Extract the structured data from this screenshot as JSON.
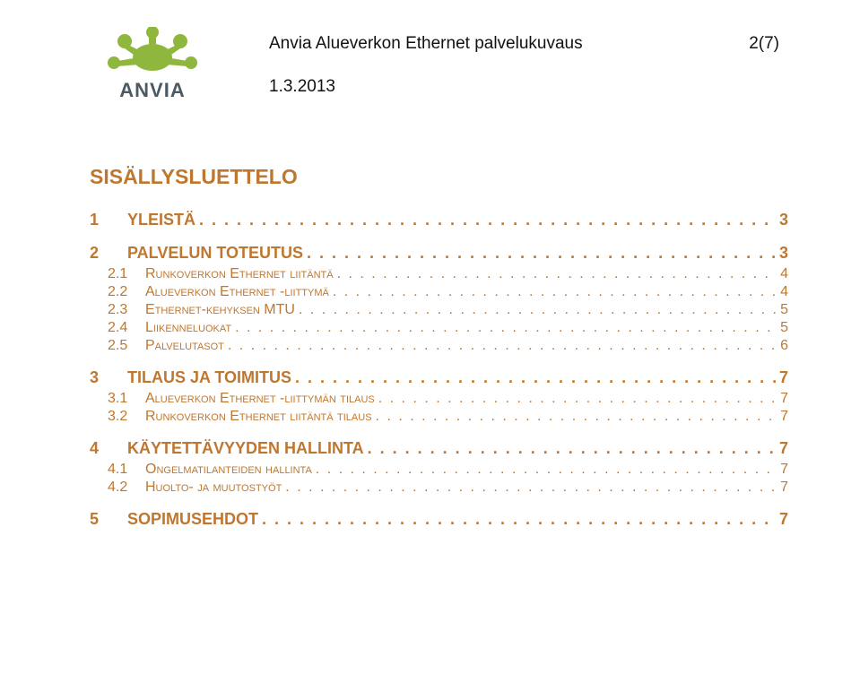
{
  "header": {
    "logo_text": "ANVIA",
    "logo_color": "#8fb73e",
    "logo_text_color": "#4a5a63",
    "doc_title": "Anvia Alueverkon Ethernet palvelukuvaus",
    "doc_date": "1.3.2013",
    "page_indicator": "2(7)"
  },
  "colors": {
    "heading": "#bf7730",
    "body": "#111111"
  },
  "toc_title": "SISÄLLYSLUETTELO",
  "toc": [
    {
      "level": 1,
      "num": "1",
      "label": "YLEISTÄ",
      "page": "3"
    },
    {
      "level": 1,
      "num": "2",
      "label": "PALVELUN TOTEUTUS",
      "page": "3"
    },
    {
      "level": 2,
      "num": "2.1",
      "label": "Runkoverkon Ethernet liitäntä",
      "page": "4"
    },
    {
      "level": 2,
      "num": "2.2",
      "label": "Alueverkon Ethernet -liittymä",
      "page": "4"
    },
    {
      "level": 2,
      "num": "2.3",
      "label": "Ethernet-kehyksen MTU",
      "page": "5"
    },
    {
      "level": 2,
      "num": "2.4",
      "label": "Liikenneluokat",
      "page": "5"
    },
    {
      "level": 2,
      "num": "2.5",
      "label": "Palvelutasot",
      "page": "6"
    },
    {
      "level": 1,
      "num": "3",
      "label": "TILAUS JA TOIMITUS",
      "page": "7"
    },
    {
      "level": 2,
      "num": "3.1",
      "label": "Alueverkon Ethernet -liittymän tilaus",
      "page": "7"
    },
    {
      "level": 2,
      "num": "3.2",
      "label": "Runkoverkon Ethernet liitäntä tilaus",
      "page": "7"
    },
    {
      "level": 1,
      "num": "4",
      "label": "KÄYTETTÄVYYDEN HALLINTA",
      "page": "7"
    },
    {
      "level": 2,
      "num": "4.1",
      "label": "Ongelmatilanteiden hallinta",
      "page": "7"
    },
    {
      "level": 2,
      "num": "4.2",
      "label": "Huolto- ja muutostyöt",
      "page": "7"
    },
    {
      "level": 1,
      "num": "5",
      "label": "SOPIMUSEHDOT",
      "page": "7"
    }
  ]
}
